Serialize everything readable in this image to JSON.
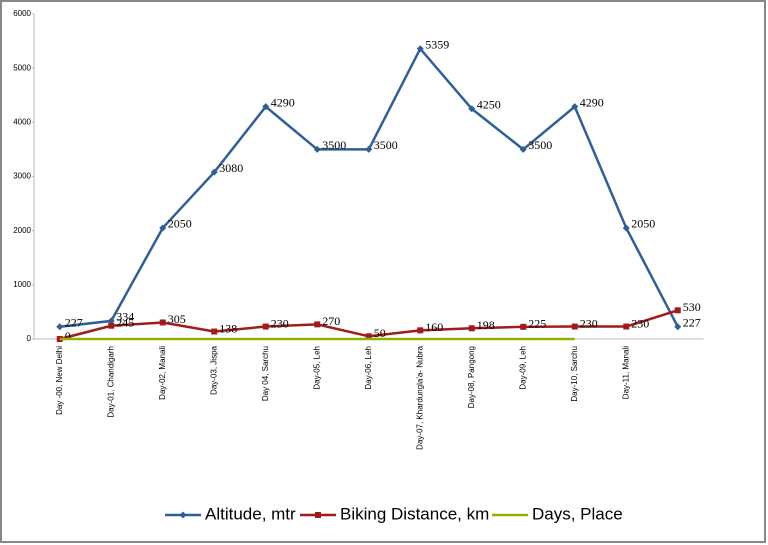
{
  "chart_data": {
    "type": "line",
    "categories": [
      "Day -00, New Delhi",
      "Day-01, Chandigarh",
      "Day-02, Manali",
      "Day-03, Jispa",
      "Day 04, Sarchu",
      "Day-05, Leh",
      "Day-06, Leh",
      "Day-07, Khardungla'a- Nubra",
      "Day-08, Pangong",
      "Day-09, Leh",
      "Day-10, Sarchu",
      "Day-11, Manali",
      null
    ],
    "series": [
      {
        "name": "Altitude, mtr",
        "color": "#2f5f98",
        "values": [
          227,
          334,
          2050,
          3080,
          4290,
          3500,
          3500,
          5359,
          4250,
          3500,
          4290,
          2050,
          227
        ]
      },
      {
        "name": "Biking Distance, km",
        "color": "#a01c1c",
        "values": [
          0,
          245,
          305,
          138,
          230,
          270,
          50,
          160,
          198,
          225,
          230,
          230,
          530
        ]
      },
      {
        "name": "Days, Place",
        "color": "#8cb400",
        "values": [
          0,
          0,
          0,
          0,
          0,
          0,
          0,
          0,
          0,
          0,
          0,
          null,
          null
        ]
      }
    ],
    "ylim": [
      0,
      6000
    ],
    "yticks": [
      0,
      1000,
      2000,
      3000,
      4000,
      5000,
      6000
    ],
    "legend": "bottom"
  }
}
